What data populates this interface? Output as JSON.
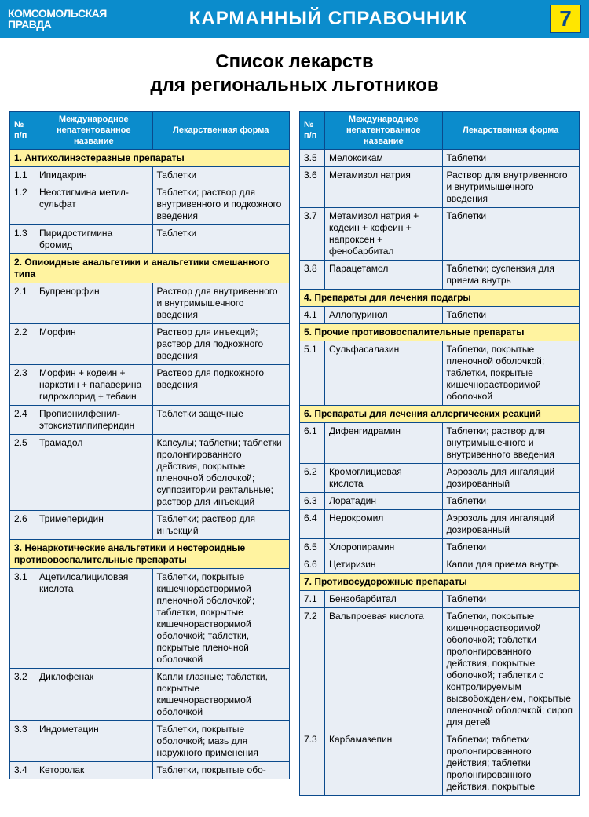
{
  "header": {
    "logo_line1": "КОМСОМОЛЬСКАЯ",
    "logo_line2": "ПРАВДА",
    "title": "КАРМАННЫЙ СПРАВОЧНИК",
    "page_number": "7"
  },
  "main_title": "Список лекарств\nдля региональных льготников",
  "columns": {
    "num": "№\nп/п",
    "name": "Международное непатентованное название",
    "form": "Лекарственная форма"
  },
  "styling": {
    "header_bg": "#0b8ccc",
    "header_text": "#ffffff",
    "page_num_bg": "#ffe600",
    "page_num_text": "#0b4a8c",
    "section_bg": "#fff3a0",
    "cell_bg": "#e9eef5",
    "border_color": "#0b4a8c",
    "body_font_size": 12,
    "title_font_size": 24
  },
  "left": [
    {
      "type": "section",
      "text": "1. Антихолинэстеразные препараты"
    },
    {
      "type": "row",
      "num": "1.1",
      "name": "Ипидакрин",
      "form": "Таблетки"
    },
    {
      "type": "row",
      "num": "1.2",
      "name": "Неостигмина метил-сульфат",
      "form": "Таблетки; раствор для внутривенного и подкожного введения"
    },
    {
      "type": "row",
      "num": "1.3",
      "name": "Пиридостигмина бромид",
      "form": "Таблетки"
    },
    {
      "type": "section",
      "text": "2. Опиоидные анальгетики и анальгетики смешанного типа"
    },
    {
      "type": "row",
      "num": "2.1",
      "name": "Бупренорфин",
      "form": "Раствор для внутривенного и внутримышечного введения"
    },
    {
      "type": "row",
      "num": "2.2",
      "name": "Морфин",
      "form": "Раствор для инъекций; раствор для подкожного введения"
    },
    {
      "type": "row",
      "num": "2.3",
      "name": "Морфин + кодеин + наркотин + папаверина гидрохлорид + тебаин",
      "form": "Раствор для подкожного введения"
    },
    {
      "type": "row",
      "num": "2.4",
      "name": "Пропионилфенил-этоксиэтилпиперидин",
      "form": "Таблетки защечные"
    },
    {
      "type": "row",
      "num": "2.5",
      "name": "Трамадол",
      "form": "Капсулы; таблетки; таблетки пролонгированного действия, покрытые пленочной оболочкой; суппозитории ректальные; раствор для инъекций"
    },
    {
      "type": "row",
      "num": "2.6",
      "name": "Тримеперидин",
      "form": "Таблетки; раствор для инъекций"
    },
    {
      "type": "section",
      "text": "3. Ненаркотические анальгетики и нестероидные противовоспалительные препараты"
    },
    {
      "type": "row",
      "num": "3.1",
      "name": "Ацетилсалициловая кислота",
      "form": "Таблетки, покрытые кишечнорастворимой пленочной оболочкой; таблетки, покрытые кишечнорастворимой оболочкой; таблетки, покрытые пленочной оболочкой"
    },
    {
      "type": "row",
      "num": "3.2",
      "name": "Диклофенак",
      "form": "Капли глазные; таблетки, покрытые кишечнорастворимой оболочкой"
    },
    {
      "type": "row",
      "num": "3.3",
      "name": "Индометацин",
      "form": "Таблетки, покрытые оболочкой; мазь для наружного применения"
    },
    {
      "type": "row",
      "num": "3.4",
      "name": "Кеторолак",
      "form": "Таблетки, покрытые обо-"
    }
  ],
  "right": [
    {
      "type": "row",
      "num": "3.5",
      "name": "Мелоксикам",
      "form": "Таблетки"
    },
    {
      "type": "row",
      "num": "3.6",
      "name": "Метамизол натрия",
      "form": "Раствор для внутривенного и внутримышечного введения"
    },
    {
      "type": "row",
      "num": "3.7",
      "name": "Метамизол натрия + кодеин + кофеин + напроксен + фенобарбитал",
      "form": "Таблетки"
    },
    {
      "type": "row",
      "num": "3.8",
      "name": "Парацетамол",
      "form": "Таблетки; суспензия для приема внутрь"
    },
    {
      "type": "section",
      "text": "4. Препараты для лечения подагры"
    },
    {
      "type": "row",
      "num": "4.1",
      "name": "Аллопуринол",
      "form": "Таблетки"
    },
    {
      "type": "section",
      "text": "5. Прочие противовоспалительные препараты"
    },
    {
      "type": "row",
      "num": "5.1",
      "name": "Сульфасалазин",
      "form": "Таблетки, покрытые пленочной оболочкой; таблетки, покрытые кишечнорастворимой оболочкой"
    },
    {
      "type": "section",
      "text": "6. Препараты для лечения аллергических реакций"
    },
    {
      "type": "row",
      "num": "6.1",
      "name": "Дифенгидрамин",
      "form": "Таблетки; раствор для внутримышечного и внутривенного введения"
    },
    {
      "type": "row",
      "num": "6.2",
      "name": "Кромоглициевая кислота",
      "form": "Аэрозоль для ингаляций дозированный"
    },
    {
      "type": "row",
      "num": "6.3",
      "name": "Лоратадин",
      "form": "Таблетки"
    },
    {
      "type": "row",
      "num": "6.4",
      "name": "Недокромил",
      "form": "Аэрозоль для ингаляций дозированный"
    },
    {
      "type": "row",
      "num": "6.5",
      "name": "Хлоропирамин",
      "form": "Таблетки"
    },
    {
      "type": "row",
      "num": "6.6",
      "name": "Цетиризин",
      "form": "Капли для приема внутрь"
    },
    {
      "type": "section",
      "text": "7. Противосудорожные препараты"
    },
    {
      "type": "row",
      "num": "7.1",
      "name": "Бензобарбитал",
      "form": "Таблетки"
    },
    {
      "type": "row",
      "num": "7.2",
      "name": "Вальпроевая кислота",
      "form": "Таблетки, покрытые кишечнорастворимой оболочкой; таблетки пролонгированного действия, покрытые оболочкой; таблетки с контролируемым высвобождением, покрытые пленочной оболочкой; сироп для детей"
    },
    {
      "type": "row",
      "num": "7.3",
      "name": "Карбамазепин",
      "form": "Таблетки; таблетки пролонгированного действия; таблетки пролонгированного действия, покрытые"
    }
  ]
}
